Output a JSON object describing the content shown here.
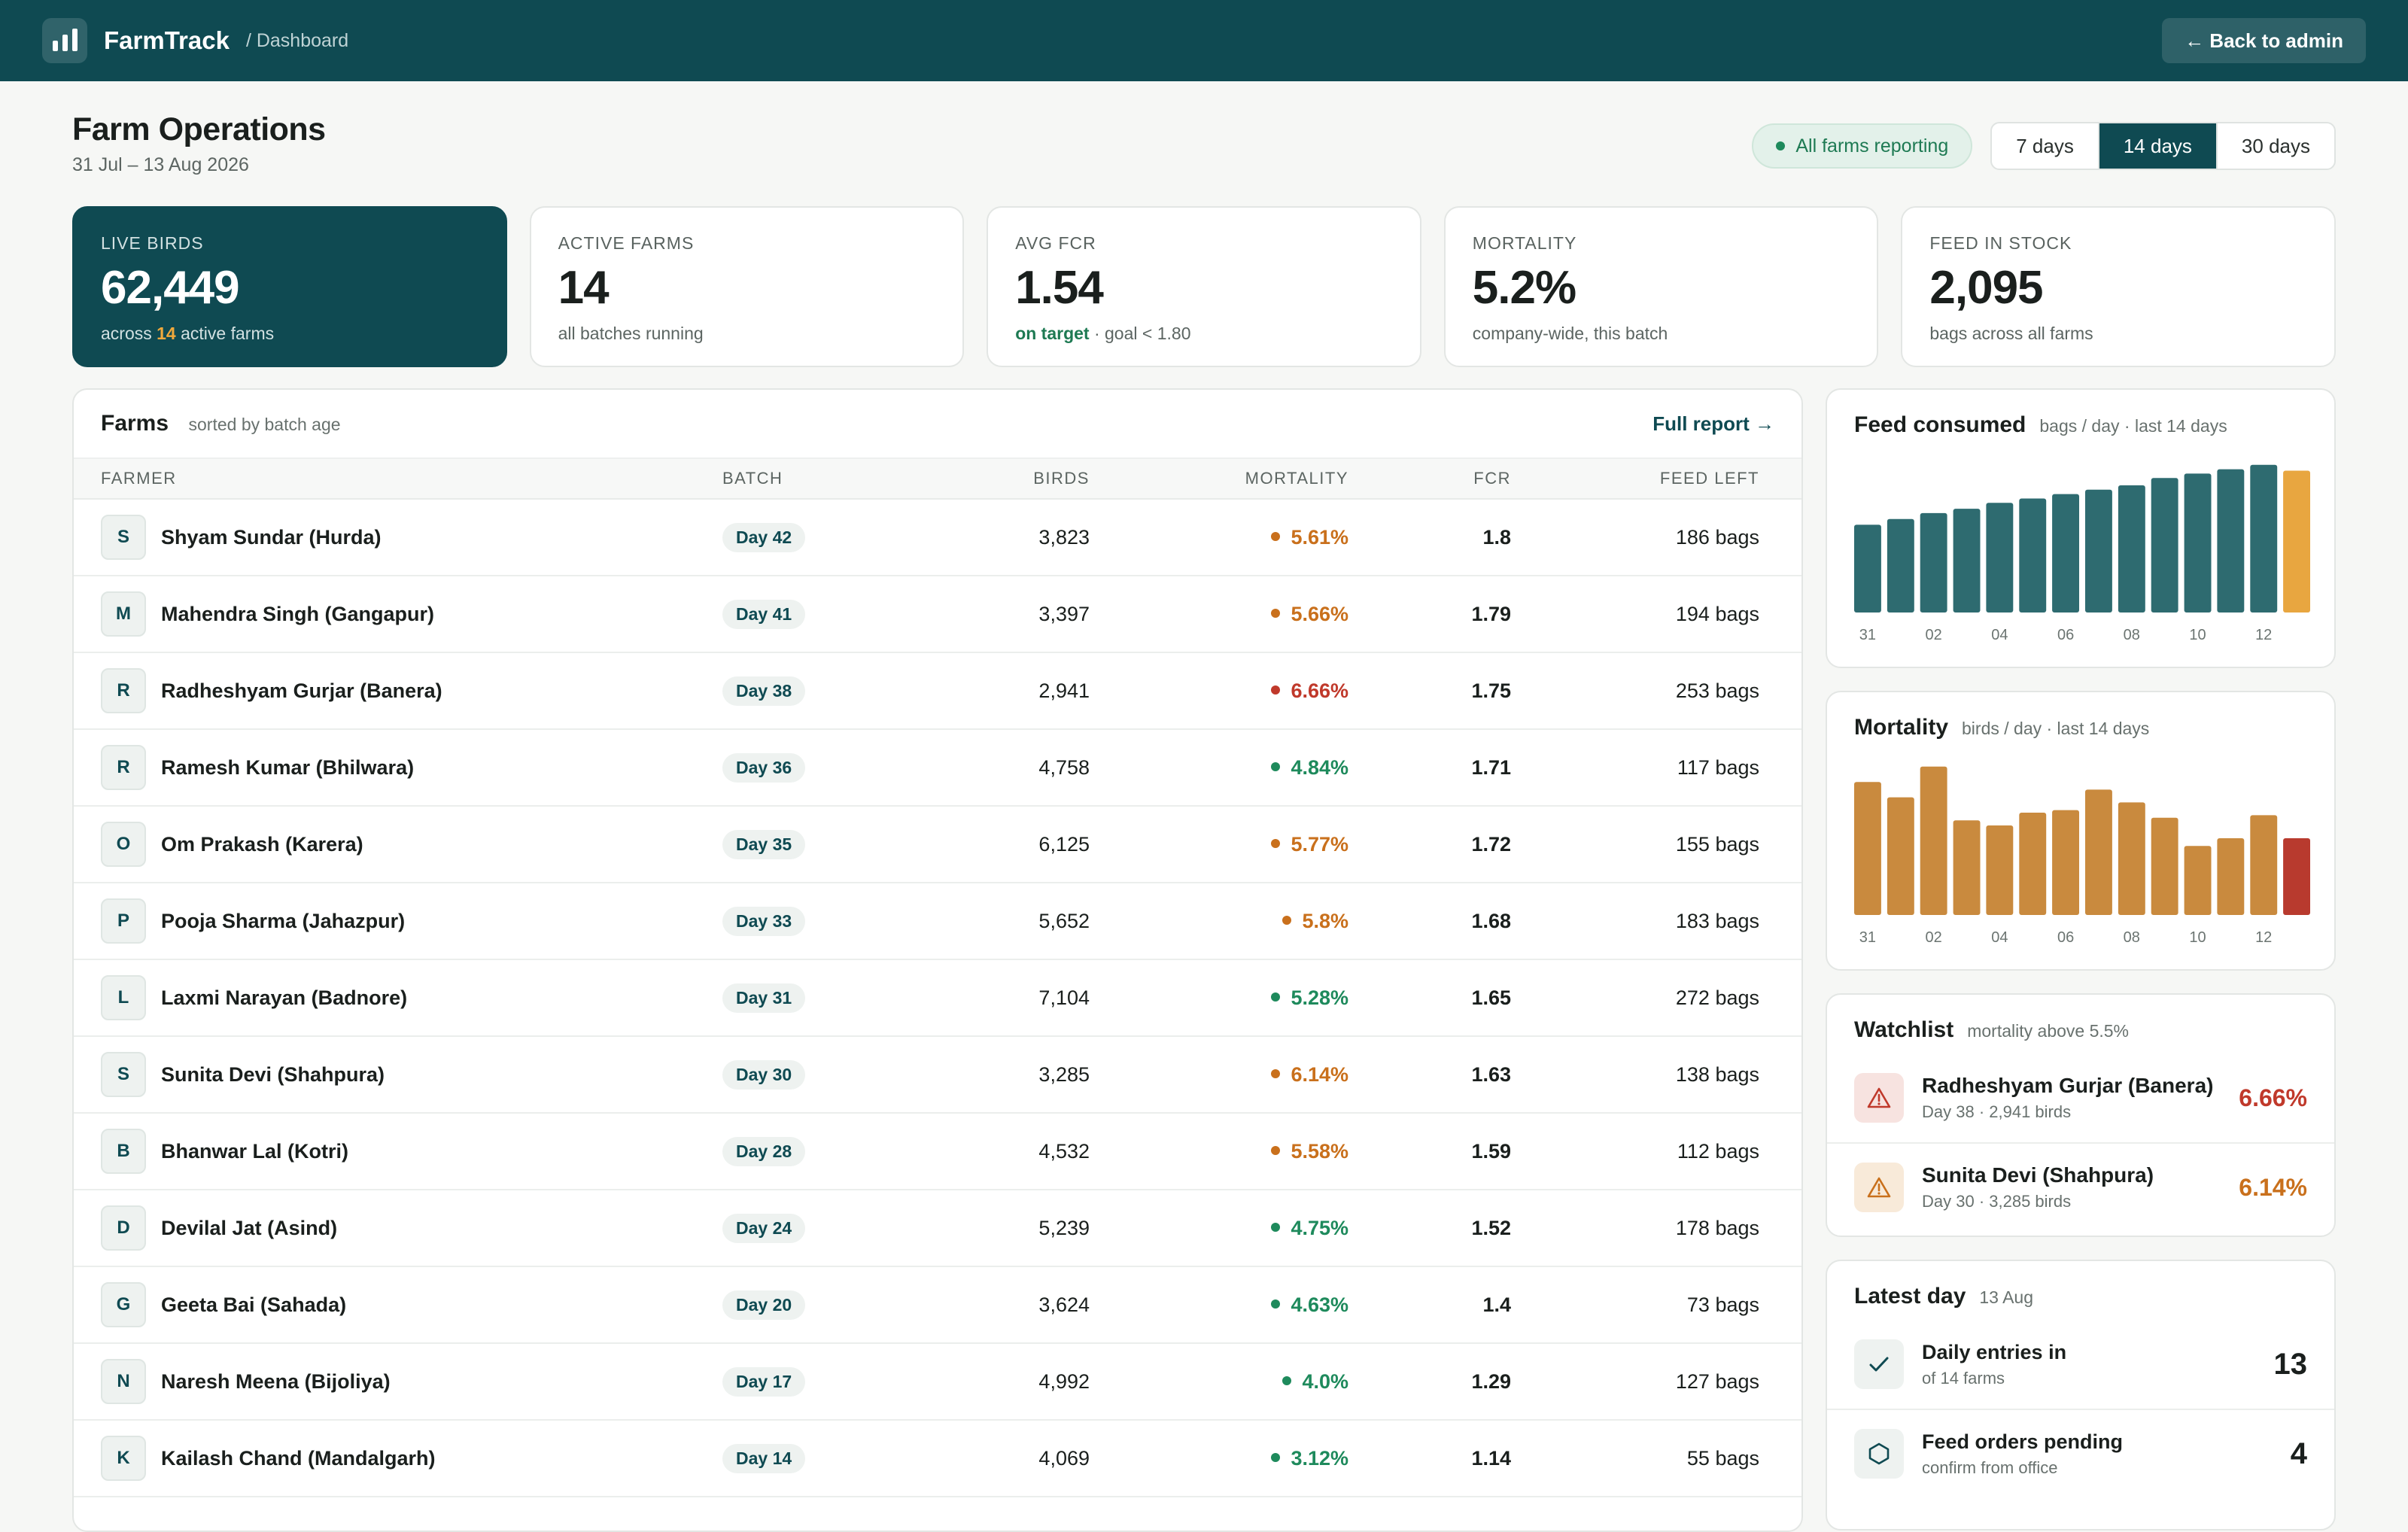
{
  "app": {
    "name": "FarmTrack",
    "breadcrumb": "/ Dashboard",
    "back_label": "← Back to admin",
    "logo_icon": "bar-chart-icon"
  },
  "header": {
    "title": "Farm Operations",
    "date_range": "31 Jul – 13 Aug 2026",
    "status": "All farms reporting",
    "range_options": [
      "7 days",
      "14 days",
      "30 days"
    ],
    "range_selected": "14 days"
  },
  "kpis": {
    "live_birds": {
      "label": "Live birds",
      "value": "62,449",
      "note_prefix": "across",
      "note_num": "14",
      "note_suffix": "active farms"
    },
    "active_farms": {
      "label": "Active farms",
      "value": "14",
      "note": "all batches running"
    },
    "avg_fcr": {
      "label": "Avg FCR",
      "value": "1.54",
      "note_ok": "on target",
      "note": "· goal < 1.80"
    },
    "mortality": {
      "label": "Mortality",
      "value": "5.2%",
      "note": "company-wide, this batch"
    },
    "feed_stock": {
      "label": "Feed in stock",
      "value": "2,095",
      "note": "bags across all farms"
    }
  },
  "farms": {
    "title": "Farms",
    "meta": "sorted by batch age",
    "link": "Full report →",
    "columns": [
      "Farmer",
      "Batch",
      "Birds",
      "Mortality",
      "FCR",
      "Feed left"
    ],
    "rows": [
      {
        "initial": "S",
        "name": "Shyam Sundar (Hurda)",
        "batch": "Day 42",
        "birds": "3,823",
        "mortality": "5.61%",
        "level": "warn",
        "fcr": "1.8",
        "feed": "186 bags"
      },
      {
        "initial": "M",
        "name": "Mahendra Singh (Gangapur)",
        "batch": "Day 41",
        "birds": "3,397",
        "mortality": "5.66%",
        "level": "warn",
        "fcr": "1.79",
        "feed": "194 bags"
      },
      {
        "initial": "R",
        "name": "Radheshyam Gurjar (Banera)",
        "batch": "Day 38",
        "birds": "2,941",
        "mortality": "6.66%",
        "level": "bad",
        "fcr": "1.75",
        "feed": "253 bags"
      },
      {
        "initial": "R",
        "name": "Ramesh Kumar (Bhilwara)",
        "batch": "Day 36",
        "birds": "4,758",
        "mortality": "4.84%",
        "level": "good",
        "fcr": "1.71",
        "feed": "117 bags"
      },
      {
        "initial": "O",
        "name": "Om Prakash (Karera)",
        "batch": "Day 35",
        "birds": "6,125",
        "mortality": "5.77%",
        "level": "warn",
        "fcr": "1.72",
        "feed": "155 bags"
      },
      {
        "initial": "P",
        "name": "Pooja Sharma (Jahazpur)",
        "batch": "Day 33",
        "birds": "5,652",
        "mortality": "5.8%",
        "level": "warn",
        "fcr": "1.68",
        "feed": "183 bags"
      },
      {
        "initial": "L",
        "name": "Laxmi Narayan (Badnore)",
        "batch": "Day 31",
        "birds": "7,104",
        "mortality": "5.28%",
        "level": "good",
        "fcr": "1.65",
        "feed": "272 bags"
      },
      {
        "initial": "S",
        "name": "Sunita Devi (Shahpura)",
        "batch": "Day 30",
        "birds": "3,285",
        "mortality": "6.14%",
        "level": "warn",
        "fcr": "1.63",
        "feed": "138 bags"
      },
      {
        "initial": "B",
        "name": "Bhanwar Lal (Kotri)",
        "batch": "Day 28",
        "birds": "4,532",
        "mortality": "5.58%",
        "level": "warn",
        "fcr": "1.59",
        "feed": "112 bags"
      },
      {
        "initial": "D",
        "name": "Devilal Jat (Asind)",
        "batch": "Day 24",
        "birds": "5,239",
        "mortality": "4.75%",
        "level": "good",
        "fcr": "1.52",
        "feed": "178 bags"
      },
      {
        "initial": "G",
        "name": "Geeta Bai (Sahada)",
        "batch": "Day 20",
        "birds": "3,624",
        "mortality": "4.63%",
        "level": "good",
        "fcr": "1.4",
        "feed": "73 bags"
      },
      {
        "initial": "N",
        "name": "Naresh Meena (Bijoliya)",
        "batch": "Day 17",
        "birds": "4,992",
        "mortality": "4.0%",
        "level": "good",
        "fcr": "1.29",
        "feed": "127 bags"
      },
      {
        "initial": "K",
        "name": "Kailash Chand (Mandalgarh)",
        "batch": "Day 14",
        "birds": "4,069",
        "mortality": "3.12%",
        "level": "good",
        "fcr": "1.14",
        "feed": "55 bags"
      }
    ]
  },
  "status_colors": {
    "good": "#1e8a5c",
    "warn": "#c9701c",
    "bad": "#c0392b"
  },
  "chart_data": [
    {
      "type": "bar",
      "title": "Feed consumed",
      "subtitle": "bags / day · last 14 days",
      "categories": [
        "31",
        "01",
        "02",
        "03",
        "04",
        "05",
        "06",
        "07",
        "08",
        "09",
        "10",
        "11",
        "12",
        "13"
      ],
      "tick_labels": [
        "31",
        "02",
        "04",
        "06",
        "08",
        "10",
        "12"
      ],
      "values": [
        60,
        64,
        68,
        71,
        75,
        78,
        81,
        84,
        87,
        92,
        95,
        98,
        101,
        97
      ],
      "ylim": [
        0,
        105
      ],
      "colors": {
        "bar": "#2e6b70",
        "highlight": "#e8a640"
      },
      "highlight_last": true
    },
    {
      "type": "bar",
      "title": "Mortality",
      "subtitle": "birds / day · last 14 days",
      "categories": [
        "31",
        "01",
        "02",
        "03",
        "04",
        "05",
        "06",
        "07",
        "08",
        "09",
        "10",
        "11",
        "12",
        "13"
      ],
      "tick_labels": [
        "31",
        "02",
        "04",
        "06",
        "08",
        "10",
        "12"
      ],
      "values": [
        52,
        46,
        58,
        37,
        35,
        40,
        41,
        49,
        44,
        38,
        27,
        30,
        39,
        30
      ],
      "ylim": [
        0,
        60
      ],
      "colors": {
        "bar": "#c98a3e",
        "highlight": "#b83a2e"
      },
      "highlight_last": true
    }
  ],
  "watchlist": {
    "title": "Watchlist",
    "meta": "mortality above 5.5%",
    "items": [
      {
        "name": "Radheshyam Gurjar (Banera)",
        "sub": "Day 38 · 2,941 birds",
        "value": "6.66%",
        "level": "bad"
      },
      {
        "name": "Sunita Devi (Shahpura)",
        "sub": "Day 30 · 3,285 birds",
        "value": "6.14%",
        "level": "warn"
      }
    ]
  },
  "latest_day": {
    "title": "Latest day",
    "meta": "13 Aug",
    "items": [
      {
        "label": "Daily entries in",
        "sub": "of 14 farms",
        "value": "13",
        "icon": "check-icon"
      },
      {
        "label": "Feed orders pending",
        "sub": "confirm from office",
        "value": "4",
        "icon": "hexagon-icon"
      }
    ]
  }
}
